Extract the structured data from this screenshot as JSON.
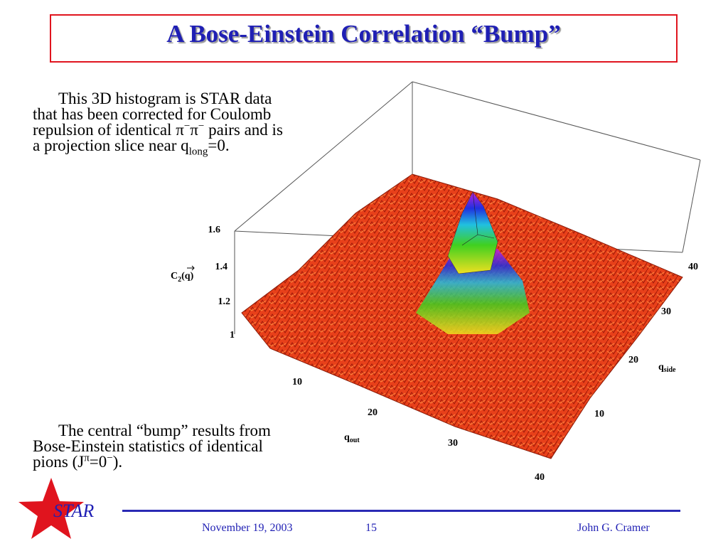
{
  "header": {
    "title": "A Bose-Einstein Correlation “Bump”"
  },
  "intro": {
    "parts": [
      "This 3D histogram is STAR data that has been corrected for Coulomb repulsion of identical ",
      "π",
      "−",
      "π",
      "−",
      " pairs and is a projection slice near q",
      "long",
      "=0",
      "."
    ]
  },
  "bump_note": {
    "parts": [
      "The central “bump” results from Bose-Einstein statistics of identical pions (J",
      "π",
      "=0",
      "−",
      ")."
    ]
  },
  "plot": {
    "z_label": [
      "C",
      "2",
      "(q)"
    ],
    "z_ticks": [
      "1.6",
      "1.4",
      "1.2",
      "1"
    ],
    "q_out_label": [
      "q",
      "out"
    ],
    "q_out_ticks": [
      "10",
      "20",
      "30",
      "40"
    ],
    "q_side_label": [
      "q",
      "side"
    ],
    "q_side_ticks": [
      "40",
      "30",
      "20",
      "10"
    ]
  },
  "footer": {
    "logo": "STAR",
    "date": "November 19, 2003",
    "page": "15",
    "author": "John G. Cramer"
  }
}
